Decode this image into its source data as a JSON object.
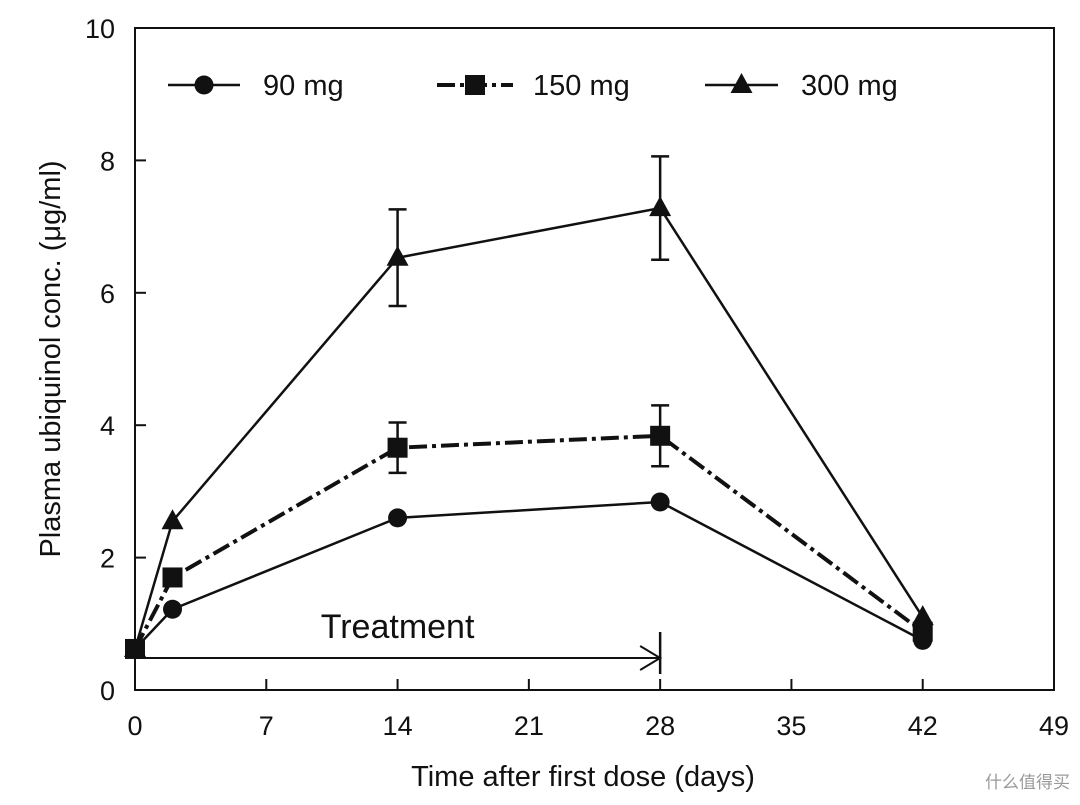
{
  "chart_data": {
    "type": "line",
    "xlabel": "Time after first dose (days)",
    "ylabel": "Plasma ubiquinol conc. (μg/ml)",
    "xlim": [
      0,
      49
    ],
    "ylim": [
      0,
      10
    ],
    "xticks": [
      0,
      7,
      14,
      21,
      28,
      35,
      42,
      49
    ],
    "yticks": [
      0,
      2,
      4,
      6,
      8,
      10
    ],
    "grid": false,
    "legend": "top",
    "series": [
      {
        "name": "90 mg",
        "marker": "circle",
        "line_style": "solid",
        "x": [
          0,
          2,
          14,
          28,
          42
        ],
        "y": [
          0.62,
          1.22,
          2.6,
          2.84,
          0.75
        ]
      },
      {
        "name": "150 mg",
        "marker": "square",
        "line_style": "dash-dot",
        "x": [
          0,
          2,
          14,
          28,
          42
        ],
        "y": [
          0.62,
          1.7,
          3.66,
          3.84,
          0.88
        ],
        "error": [
          null,
          null,
          0.38,
          0.46,
          null
        ]
      },
      {
        "name": "300 mg",
        "marker": "triangle",
        "line_style": "solid",
        "x": [
          0,
          2,
          14,
          28,
          42
        ],
        "y": [
          0.62,
          2.55,
          6.53,
          7.28,
          1.1
        ],
        "error": [
          null,
          null,
          0.73,
          0.78,
          null
        ]
      }
    ],
    "annotations": [
      {
        "text": "Treatment",
        "arrow_from": 0,
        "arrow_to": 28
      }
    ]
  },
  "watermark": "什么值得买",
  "colors": {
    "ink": "#111111",
    "background": "#ffffff"
  }
}
